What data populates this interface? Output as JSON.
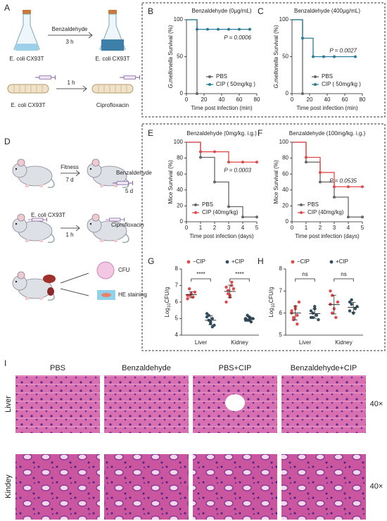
{
  "panels": [
    "A",
    "B",
    "C",
    "D",
    "E",
    "F",
    "G",
    "H",
    "I"
  ],
  "schematic_a": {
    "treatment": "Benzaldehyde",
    "treatment_time": "3 h",
    "strain": [
      "E. coli CX93T",
      "E. coli CX93T",
      "E. coli CX93T"
    ],
    "infection_time": "1 h",
    "drug": "Ciprofloxacin"
  },
  "schematic_d": {
    "step1": "Fitness",
    "step1_time": "7 d",
    "treatment": "Benzaldehyde",
    "treatment_time": "5 d",
    "strain": "E. coli CX93T",
    "infection_time": "1 h",
    "drug": "Ciprofloxacin",
    "readout": [
      "CFU",
      "HE staining"
    ]
  },
  "chart_data": [
    {
      "type": "step",
      "title": "Benzaldehyde (0μg/mL)",
      "ylabel_italic": "G.mellonella",
      "ylabel": " Survival (%)",
      "xlabel": "Time post infection (min)",
      "xlim": [
        0,
        80
      ],
      "xticks": [
        0,
        20,
        40,
        60,
        80
      ],
      "ylim": [
        0,
        100
      ],
      "yticks": [
        0,
        50,
        100
      ],
      "legend": "lower right",
      "annotation": "P = 0.0006",
      "series": [
        {
          "name": "PBS",
          "color": "#666666",
          "x": [
            0,
            12
          ],
          "values": [
            100,
            0
          ]
        },
        {
          "name": "CIP ( 50mg/kg )",
          "color": "#2a7d96",
          "x": [
            0,
            12,
            24,
            36,
            48,
            60,
            72
          ],
          "values": [
            100,
            87,
            87,
            87,
            87,
            87,
            87
          ]
        }
      ]
    },
    {
      "type": "step",
      "title": "Benzaldehyde (400μg/mL)",
      "ylabel_italic": "G.mellonella",
      "ylabel": " Survival (%)",
      "xlabel": "Time post infection (min)",
      "xlim": [
        0,
        80
      ],
      "xticks": [
        0,
        20,
        40,
        60,
        80
      ],
      "ylim": [
        0,
        100
      ],
      "yticks": [
        0,
        50,
        100
      ],
      "legend": "lower right",
      "annotation": "P = 0.0027",
      "series": [
        {
          "name": "PBS",
          "color": "#666666",
          "x": [
            0,
            12
          ],
          "values": [
            100,
            0
          ]
        },
        {
          "name": "CIP ( 50mg/kg )",
          "color": "#2a7d96",
          "x": [
            0,
            12,
            24,
            36,
            48,
            72
          ],
          "values": [
            100,
            75,
            50,
            50,
            50,
            50
          ]
        }
      ]
    },
    {
      "type": "step",
      "title": "Benzaldehyde (0mg/kg.  i.g.)",
      "ylabel_italic": "",
      "ylabel": "Mice Survival (%)",
      "xlabel": "Time post infection (days)",
      "xlim": [
        0,
        5
      ],
      "xticks": [
        0,
        1,
        2,
        3,
        4,
        5
      ],
      "ylim": [
        0,
        100
      ],
      "yticks": [
        0,
        20,
        40,
        60,
        80,
        100
      ],
      "legend": "lower left",
      "annotation": "P = 0.0003",
      "series": [
        {
          "name": "PBS",
          "color": "#666666",
          "x": [
            0,
            1,
            2,
            3,
            4,
            5
          ],
          "values": [
            100,
            81,
            50,
            19,
            6,
            6
          ]
        },
        {
          "name": "CIP (40mg/kg)",
          "color": "#e04a4a",
          "x": [
            0,
            1,
            2,
            3,
            4,
            5
          ],
          "values": [
            100,
            88,
            88,
            75,
            75,
            75
          ]
        }
      ]
    },
    {
      "type": "step",
      "title": "Benzaldehyde (100mg/kg.  i.g.)",
      "ylabel_italic": "",
      "ylabel": "Mice Survival (%)",
      "xlabel": "Time post infection (days)",
      "xlim": [
        0,
        5
      ],
      "xticks": [
        0,
        1,
        2,
        3,
        4,
        5
      ],
      "ylim": [
        0,
        100
      ],
      "yticks": [
        0,
        20,
        40,
        60,
        80,
        100
      ],
      "legend": "lower left",
      "annotation": "P = 0.0535",
      "series": [
        {
          "name": "PBS",
          "color": "#666666",
          "x": [
            0,
            1,
            2,
            3,
            4,
            5
          ],
          "values": [
            100,
            75,
            50,
            31,
            6,
            6
          ]
        },
        {
          "name": "CIP (40mg/kg)",
          "color": "#e04a4a",
          "x": [
            0,
            1,
            2,
            3,
            4,
            5
          ],
          "values": [
            100,
            81,
            62,
            44,
            44,
            44
          ]
        }
      ]
    },
    {
      "type": "dot",
      "ylabel": [
        "Log",
        "10",
        "CFU/g"
      ],
      "categories": [
        "Liver",
        "Kidney"
      ],
      "ylim": [
        4,
        8
      ],
      "yticks": [
        4,
        5,
        6,
        7,
        8
      ],
      "legend": "top",
      "sig": [
        "****",
        "****"
      ],
      "series": [
        {
          "name": "−CIP",
          "color": "#e04a4a",
          "values": [
            [
              6.2,
              6.4,
              6.5,
              6.3,
              6.6,
              6.4,
              6.8,
              6.5,
              6.3
            ],
            [
              6.9,
              6.5,
              6.3,
              7.2,
              6.8,
              6.0,
              6.7,
              6.4,
              7.0
            ]
          ]
        },
        {
          "name": "+CIP",
          "color": "#2f4f5f",
          "values": [
            [
              5.1,
              4.9,
              4.7,
              5.0,
              4.6,
              5.3,
              5.2,
              4.8,
              4.5
            ],
            [
              5.0,
              4.9,
              5.1,
              4.8,
              5.0,
              4.9,
              5.2,
              4.9,
              5.0
            ]
          ]
        }
      ]
    },
    {
      "type": "dot",
      "ylabel": [
        "Log",
        "10",
        "CFU/g"
      ],
      "categories": [
        "Liver",
        "Kidney"
      ],
      "ylim": [
        5,
        8
      ],
      "yticks": [
        5,
        6,
        7,
        8
      ],
      "legend": "top",
      "sig": [
        "ns",
        "ns"
      ],
      "series": [
        {
          "name": "−CIP",
          "color": "#e04a4a",
          "values": [
            [
              6.0,
              5.8,
              6.3,
              5.5,
              6.5,
              6.1,
              5.7,
              6.2,
              5.9
            ],
            [
              7.0,
              6.8,
              6.2,
              5.8,
              6.5,
              6.4,
              6.0
            ]
          ]
        },
        {
          "name": "+CIP",
          "color": "#2f4f5f",
          "values": [
            [
              5.8,
              6.0,
              6.2,
              5.9,
              5.7,
              6.1,
              5.8,
              6.3
            ],
            [
              6.5,
              6.4,
              6.0,
              6.2,
              6.3,
              6.1,
              6.6,
              6.0
            ]
          ]
        }
      ]
    }
  ],
  "histology": {
    "columns": [
      "PBS",
      "Benzaldehyde",
      "PBS+CIP",
      "Benzaldehyde+CIP"
    ],
    "rows": [
      "Liver",
      "Kindey"
    ],
    "magnification": [
      "40×",
      "40×"
    ]
  }
}
